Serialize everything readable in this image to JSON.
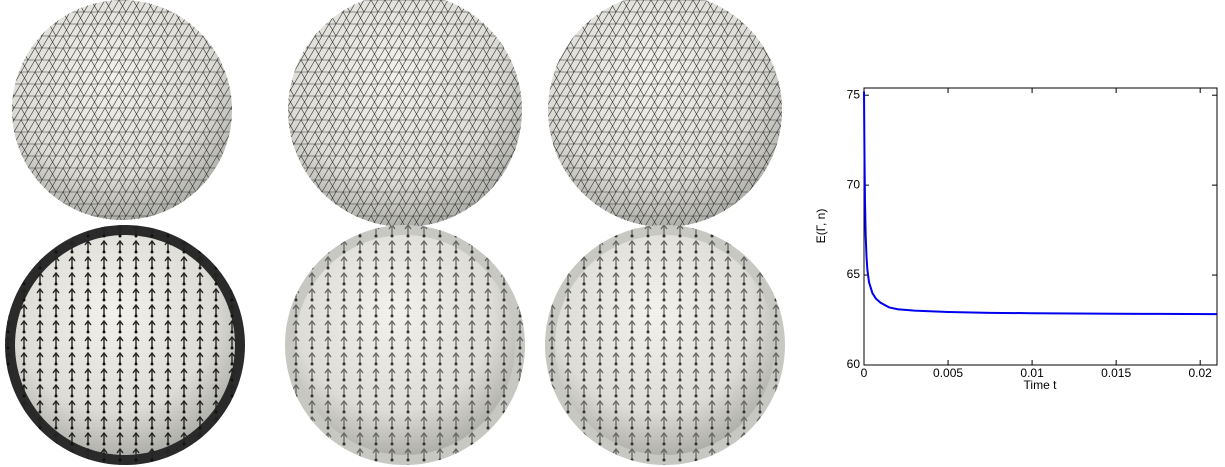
{
  "chart_data": {
    "type": "line",
    "xlabel": "Time t",
    "ylabel": "E(Γ, n)",
    "x": [
      0,
      3e-05,
      6e-05,
      0.0001,
      0.00015,
      0.0002,
      0.0003,
      0.0005,
      0.0007,
      0.001,
      0.0015,
      0.002,
      0.003,
      0.005,
      0.0075,
      0.01,
      0.0125,
      0.015,
      0.0175,
      0.021
    ],
    "values": [
      75.2,
      71.5,
      69.0,
      67.2,
      66.0,
      65.3,
      64.6,
      64.0,
      63.7,
      63.45,
      63.2,
      63.1,
      63.02,
      62.95,
      62.9,
      62.88,
      62.86,
      62.85,
      62.84,
      62.83
    ],
    "color": "#0000ee",
    "xlim": [
      0,
      0.021
    ],
    "ylim": [
      60,
      75.4
    ],
    "xticks": [
      0,
      0.005,
      0.01,
      0.015,
      0.02
    ],
    "yticks": [
      60,
      65,
      70,
      75
    ]
  }
}
